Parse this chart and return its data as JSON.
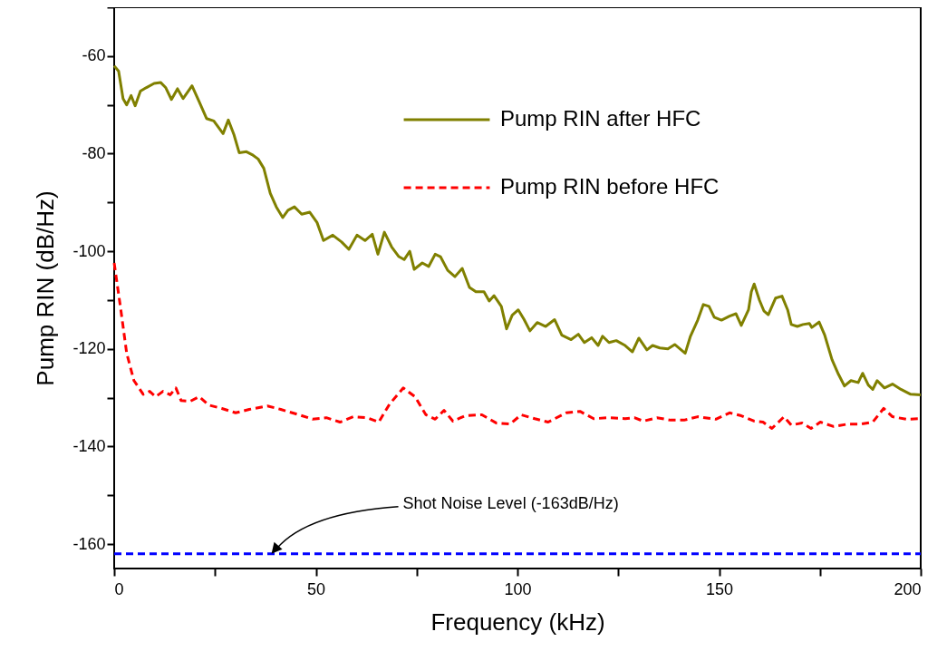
{
  "chart_data": {
    "type": "line",
    "xlabel": "Frequency (kHz)",
    "ylabel": "Pump RIN (dB/Hz)",
    "xlim": [
      0,
      200
    ],
    "xticks": [
      0,
      {
        "value": 25,
        "label": null
      },
      50,
      {
        "value": 75,
        "label": null
      },
      100,
      {
        "value": 125,
        "label": null
      },
      150,
      {
        "value": 175,
        "label": null
      },
      200
    ],
    "ylim": [
      -165,
      -50
    ],
    "yticks": [
      {
        "value": -50,
        "label": null
      },
      -60,
      {
        "value": -70,
        "label": null
      },
      -80,
      {
        "value": -90,
        "label": null
      },
      -100,
      {
        "value": -110,
        "label": null
      },
      -120,
      {
        "value": -130,
        "label": null
      },
      -140,
      {
        "value": -150,
        "label": null
      },
      -160
    ],
    "grid": false,
    "legend": "top right",
    "marker": "none",
    "series": [
      {
        "name": "Pump RIN after HFC",
        "color": "#808000",
        "line_style": "solid",
        "x": [
          0,
          1.1,
          2.2,
          3.1,
          4.2,
          5.2,
          6.5,
          7.9,
          9.9,
          11.5,
          12.8,
          14.2,
          15.7,
          17.1,
          19.3,
          21.1,
          22.9,
          24.7,
          27,
          28.3,
          29.7,
          31,
          32.8,
          34.2,
          35.7,
          37.1,
          38.7,
          40.2,
          41.8,
          43.1,
          44.7,
          46.5,
          48.5,
          50.3,
          51.9,
          54.2,
          56.4,
          58.2,
          60.2,
          62.2,
          64,
          65.4,
          67,
          68.8,
          70.6,
          71.9,
          73.3,
          74.4,
          76.4,
          78,
          79.6,
          80.9,
          82.7,
          84.5,
          86.3,
          88.1,
          89.7,
          91.7,
          93,
          94.2,
          96,
          97.3,
          98.7,
          100.2,
          101.6,
          103.1,
          104.9,
          107,
          109.2,
          111,
          113.3,
          115.1,
          116.6,
          118.4,
          120,
          121.1,
          122.7,
          124.5,
          126.7,
          128.5,
          130.1,
          132.1,
          133.5,
          135.3,
          137.3,
          139,
          141.6,
          142.9,
          144.7,
          146.1,
          147.5,
          148.8,
          150.6,
          152.6,
          154.2,
          155.5,
          157.3,
          158,
          158.7,
          160,
          161.1,
          162.2,
          164,
          165.6,
          167,
          167.9,
          169.4,
          170.8,
          172.4,
          173,
          174.8,
          176.2,
          178,
          179.6,
          181.1,
          182.7,
          184.5,
          185.6,
          187,
          188.1,
          189.2,
          191,
          193,
          195.1,
          197.5,
          200
        ],
        "values": [
          -62,
          -63.1,
          -68.7,
          -70,
          -68.1,
          -70.2,
          -67.2,
          -66.5,
          -65.6,
          -65.4,
          -66.5,
          -68.9,
          -66.7,
          -68.7,
          -66.1,
          -69.4,
          -72.8,
          -73.3,
          -75.9,
          -73.1,
          -76.1,
          -79.8,
          -79.6,
          -80.2,
          -81.1,
          -83,
          -88.1,
          -90.9,
          -93.1,
          -91.6,
          -90.9,
          -92.4,
          -92,
          -94.1,
          -97.8,
          -96.7,
          -98.1,
          -99.6,
          -96.7,
          -97.8,
          -96.5,
          -100.6,
          -96.1,
          -99.1,
          -101.1,
          -101.7,
          -100,
          -103.7,
          -102.4,
          -103.1,
          -100.6,
          -101.1,
          -103.9,
          -105.2,
          -103.5,
          -107.4,
          -108.3,
          -108.3,
          -110.2,
          -109.1,
          -111.3,
          -115.9,
          -113.1,
          -112,
          -113.9,
          -116.3,
          -114.6,
          -115.4,
          -114,
          -117.2,
          -118.1,
          -117,
          -118.7,
          -117.7,
          -119.3,
          -117.4,
          -118.7,
          -118.3,
          -119.3,
          -120.6,
          -117.8,
          -120.2,
          -119.3,
          -119.8,
          -120,
          -119.1,
          -120.9,
          -117.4,
          -114.1,
          -110.9,
          -111.3,
          -113.5,
          -114.1,
          -113.3,
          -112.8,
          -115.2,
          -112,
          -108.3,
          -106.7,
          -110,
          -112.2,
          -113,
          -109.6,
          -109.2,
          -112,
          -115,
          -115.4,
          -115,
          -114.8,
          -115.6,
          -114.5,
          -117.2,
          -122.2,
          -125.2,
          -127.6,
          -126.5,
          -126.9,
          -125,
          -127.4,
          -128.3,
          -126.5,
          -128,
          -127.2,
          -128.3,
          -129.3,
          -129.4
        ]
      },
      {
        "name": "Pump RIN before HFC",
        "color": "#ff0000",
        "line_style": "dashed",
        "x": [
          0,
          1.6,
          3.1,
          4.9,
          7.2,
          8.8,
          10.3,
          12.1,
          13.9,
          15.3,
          16.6,
          18.9,
          21.1,
          23.4,
          26.7,
          30.1,
          33.5,
          38,
          41.3,
          45.8,
          49.2,
          52.6,
          56,
          59.3,
          62.7,
          65.6,
          68.3,
          71.7,
          74.6,
          77.3,
          79.6,
          81.8,
          84,
          87,
          91.2,
          94.8,
          98.2,
          100.9,
          104.3,
          107.6,
          112.1,
          115.5,
          118.9,
          122.7,
          126.7,
          129,
          131.2,
          134.6,
          138,
          141.3,
          144.7,
          149.2,
          152.6,
          155.5,
          158.7,
          160.9,
          163.1,
          166.1,
          167.9,
          170.6,
          172.8,
          175.1,
          178.4,
          182,
          185.2,
          188.1,
          190.8,
          193,
          196.4,
          200
        ],
        "values": [
          -102.4,
          -111.7,
          -120.9,
          -126.5,
          -129.3,
          -128.7,
          -129.8,
          -128.7,
          -129.4,
          -128,
          -130.6,
          -130.7,
          -129.8,
          -131.5,
          -132.2,
          -133.1,
          -132.4,
          -131.7,
          -132.4,
          -133.5,
          -134.4,
          -134.1,
          -135,
          -133.9,
          -134.1,
          -135,
          -131.3,
          -128,
          -129.8,
          -133.5,
          -134.4,
          -132.6,
          -134.8,
          -133.7,
          -133.5,
          -135.2,
          -135.4,
          -133.5,
          -134.3,
          -135,
          -133.1,
          -132.8,
          -134.3,
          -134.1,
          -134.3,
          -134.1,
          -134.8,
          -134.1,
          -134.6,
          -134.6,
          -133.9,
          -134.4,
          -133.1,
          -133.7,
          -134.8,
          -135,
          -136.3,
          -133.9,
          -135.6,
          -135.2,
          -136.3,
          -135,
          -135.9,
          -135.4,
          -135.4,
          -135,
          -132.2,
          -133.9,
          -134.4,
          -134.3
        ]
      },
      {
        "color": "#0000ff",
        "line_style": "dashed",
        "x": [
          0,
          200
        ],
        "values": [
          -162,
          -162
        ]
      }
    ],
    "annotations": [
      {
        "text": "Shot Noise Level (-163dB/Hz)",
        "x": 39,
        "y": -162
      }
    ]
  }
}
